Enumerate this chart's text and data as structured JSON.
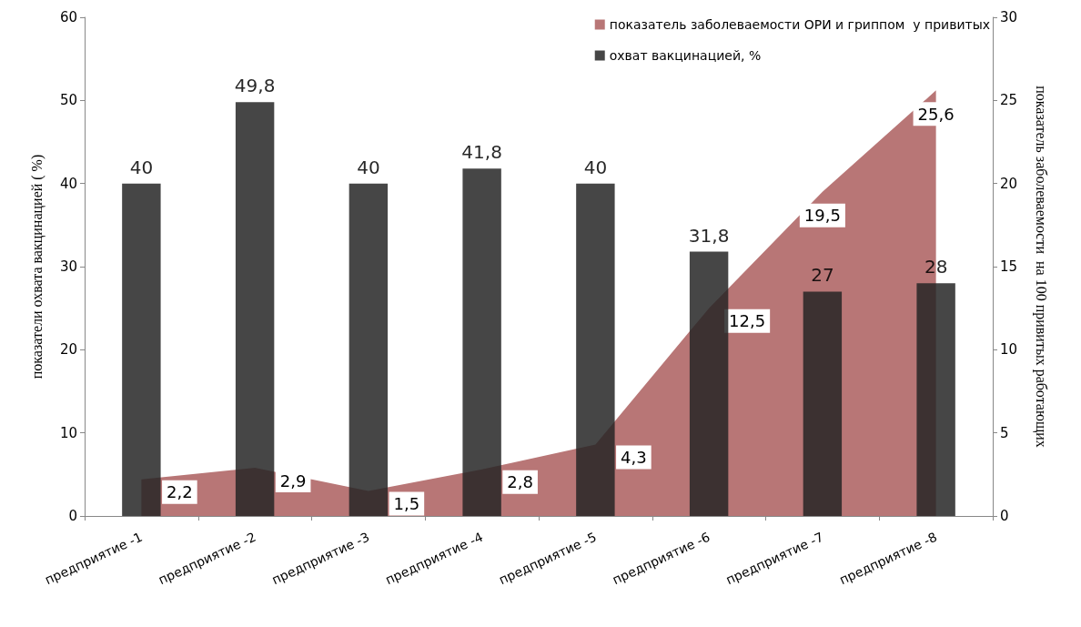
{
  "chart_data": {
    "type": "bar",
    "ylabel": "показатели охвата вакцинацией ( %)",
    "y2label": "показатель заболеваемости  на 100 привитых работающих",
    "categories": [
      "предприятие -1",
      "предприятие -2",
      "предприятие -3",
      "предприятие -4",
      "предприятие -5",
      "предприятие -6",
      "предприятие -7",
      "предприятие -8"
    ],
    "series": [
      {
        "name": "показатель заболеваемости ОРИ и гриппом  у привитых",
        "type": "area",
        "axis": "y2",
        "color": "#b87676",
        "values": [
          2.2,
          2.9,
          1.5,
          2.8,
          4.3,
          12.5,
          19.5,
          25.6
        ],
        "value_labels": [
          "2,2",
          "2,9",
          "1,5",
          "2,8",
          "4,3",
          "12,5",
          "19,5",
          "25,6"
        ]
      },
      {
        "name": "охват вакцинацией, %",
        "color": "#262626",
        "values": [
          40,
          49.8,
          40,
          41.8,
          40,
          31.8,
          27,
          28
        ],
        "value_labels": [
          "40",
          "49,8",
          "40",
          "41,8",
          "40",
          "31,8",
          "27",
          "28"
        ]
      }
    ],
    "ylim": [
      0,
      60
    ],
    "yticks": [
      0,
      10,
      20,
      30,
      40,
      50,
      60
    ],
    "y2lim": [
      0,
      30
    ],
    "y2ticks": [
      0,
      5,
      10,
      15,
      20,
      25,
      30
    ],
    "grid": false,
    "legend": "top right"
  }
}
